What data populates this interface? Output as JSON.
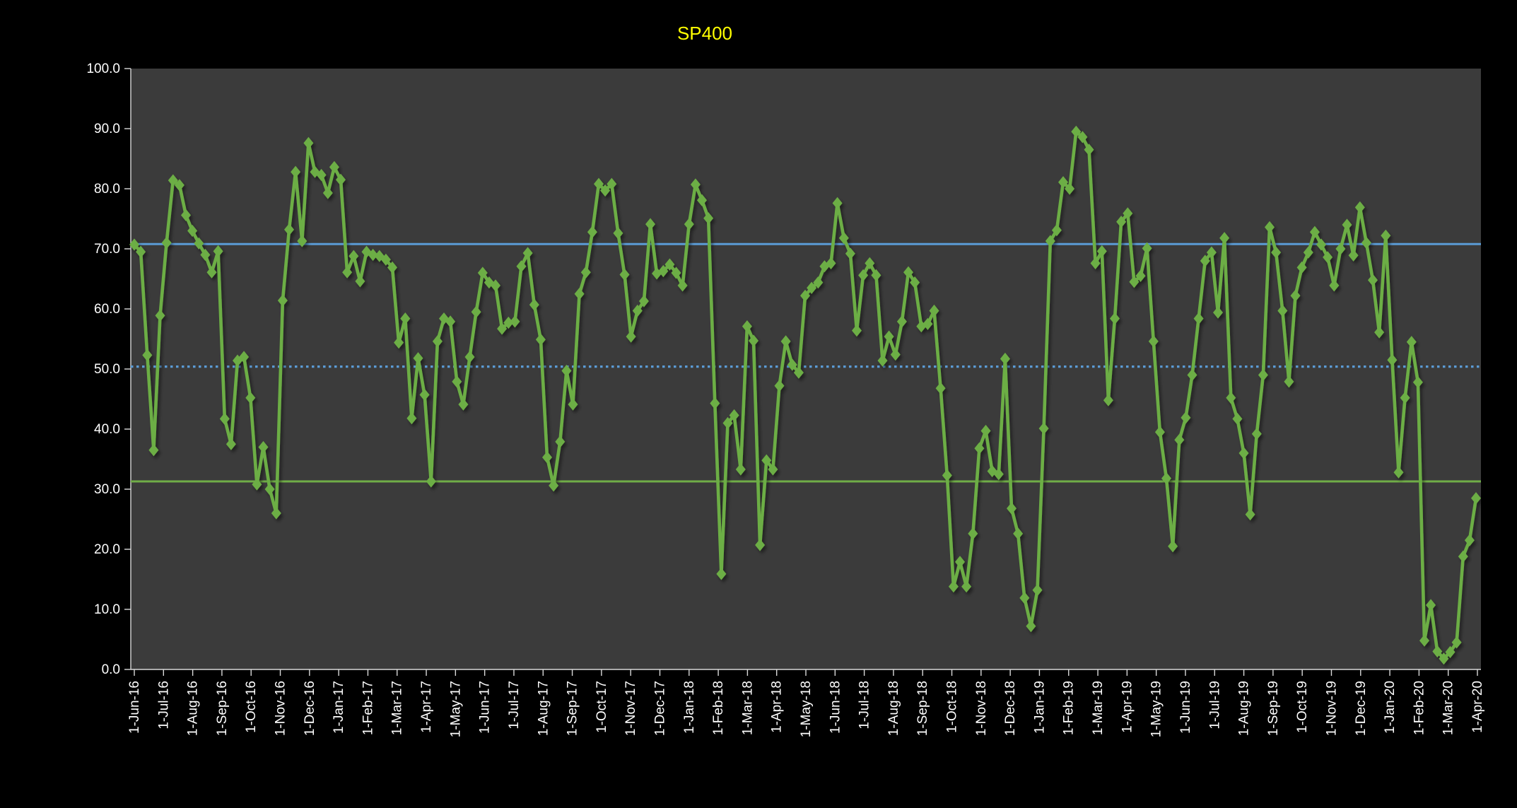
{
  "title": {
    "text": "SP400",
    "color": "#FFFF00"
  },
  "colors": {
    "background": "#000000",
    "plot_background": "#3B3B3B",
    "series_green": "#6CAE45",
    "reference_blue": "#5B9BD5",
    "reference_green": "#70AD47",
    "axis_text": "#FFFFFF",
    "axis_line": "#D9D9D9"
  },
  "chart_data": {
    "type": "line",
    "title": "SP400",
    "xlabel": "",
    "ylabel": "",
    "ylim": [
      0,
      100
    ],
    "grid": false,
    "legend": "none",
    "marker": "diamond",
    "y_tick_labels": [
      "0.0",
      "10.0",
      "20.0",
      "30.0",
      "40.0",
      "50.0",
      "60.0",
      "70.0",
      "80.0",
      "90.0",
      "100.0"
    ],
    "x_tick_labels": [
      "1-Jun-16",
      "1-Jul-16",
      "1-Aug-16",
      "1-Sep-16",
      "1-Oct-16",
      "1-Nov-16",
      "1-Dec-16",
      "1-Jan-17",
      "1-Feb-17",
      "1-Mar-17",
      "1-Apr-17",
      "1-May-17",
      "1-Jun-17",
      "1-Jul-17",
      "1-Aug-17",
      "1-Sep-17",
      "1-Oct-17",
      "1-Nov-17",
      "1-Dec-17",
      "1-Jan-18",
      "1-Feb-18",
      "1-Mar-18",
      "1-Apr-18",
      "1-May-18",
      "1-Jun-18",
      "1-Jul-18",
      "1-Aug-18",
      "1-Sep-18",
      "1-Oct-18",
      "1-Nov-18",
      "1-Dec-18",
      "1-Jan-19",
      "1-Feb-19",
      "1-Mar-19",
      "1-Apr-19",
      "1-May-19",
      "1-Jun-19",
      "1-Jul-19",
      "1-Aug-19",
      "1-Sep-19",
      "1-Oct-19",
      "1-Nov-19",
      "1-Dec-19",
      "1-Jan-20",
      "1-Feb-20",
      "1-Mar-20",
      "1-Apr-20"
    ],
    "series": [
      {
        "name": "SP400",
        "color": "#6CAE45",
        "values": [
          70.7,
          69.5,
          52.3,
          36.5,
          58.9,
          71.0,
          81.4,
          80.6,
          75.6,
          73.0,
          70.9,
          69.0,
          66.1,
          69.6,
          41.7,
          37.5,
          51.4,
          52.0,
          45.2,
          30.8,
          37.0,
          30.0,
          26.0,
          61.4,
          73.2,
          82.8,
          71.3,
          87.6,
          82.8,
          82.3,
          79.3,
          83.6,
          81.5,
          66.1,
          68.8,
          64.6,
          69.5,
          69.0,
          68.8,
          68.2,
          66.9,
          54.4,
          58.4,
          41.8,
          51.8,
          45.7,
          31.3,
          54.6,
          58.4,
          57.9,
          47.9,
          44.1,
          52.0,
          59.5,
          66.0,
          64.4,
          63.9,
          56.7,
          57.7,
          57.9,
          67.1,
          69.3,
          60.7,
          54.9,
          35.3,
          30.6,
          37.9,
          49.7,
          44.1,
          62.5,
          66.1,
          72.8,
          80.8,
          79.7,
          80.8,
          72.6,
          65.7,
          55.4,
          59.7,
          61.3,
          74.1,
          65.9,
          66.3,
          67.4,
          66.0,
          63.9,
          74.1,
          80.7,
          78.1,
          75.1,
          44.3,
          15.9,
          41.0,
          42.3,
          33.3,
          57.1,
          54.7,
          20.7,
          34.8,
          33.3,
          47.2,
          54.6,
          50.7,
          49.4,
          62.2,
          63.5,
          64.4,
          67.1,
          67.6,
          77.6,
          71.8,
          69.2,
          56.4,
          65.6,
          67.6,
          65.6,
          51.4,
          55.4,
          52.4,
          57.9,
          66.1,
          64.4,
          57.1,
          57.5,
          59.7,
          46.8,
          32.3,
          13.8,
          17.9,
          13.8,
          22.6,
          36.8,
          39.7,
          33.0,
          32.5,
          51.7,
          26.8,
          22.6,
          11.9,
          7.2,
          13.2,
          40.1,
          71.3,
          73.1,
          81.1,
          80.0,
          89.5,
          88.6,
          86.5,
          67.6,
          69.6,
          44.8,
          58.4,
          74.5,
          75.9,
          64.5,
          65.5,
          70.1,
          54.6,
          39.5,
          31.8,
          20.5,
          38.2,
          41.9,
          49.0,
          58.4,
          68.0,
          69.4,
          59.4,
          71.8,
          45.2,
          41.7,
          36.0,
          25.8,
          39.2,
          49.0,
          73.6,
          69.4,
          59.7,
          47.9,
          62.2,
          66.9,
          69.4,
          72.8,
          70.7,
          68.6,
          63.9,
          70.0,
          74.0,
          68.9,
          76.9,
          71.0,
          64.8,
          56.1,
          72.2,
          51.5,
          32.8,
          45.2,
          54.5,
          47.8,
          4.8,
          10.7,
          3.0,
          1.8,
          2.9,
          4.5,
          18.8,
          21.5,
          28.5
        ]
      }
    ],
    "reference_lines": [
      {
        "name": "upper-blue-solid",
        "value": 70.8,
        "style": "solid",
        "color": "#5B9BD5"
      },
      {
        "name": "middle-blue-dotted",
        "value": 50.4,
        "style": "dotted",
        "color": "#5B9BD5"
      },
      {
        "name": "lower-green-solid",
        "value": 31.3,
        "style": "solid",
        "color": "#70AD47"
      }
    ]
  }
}
